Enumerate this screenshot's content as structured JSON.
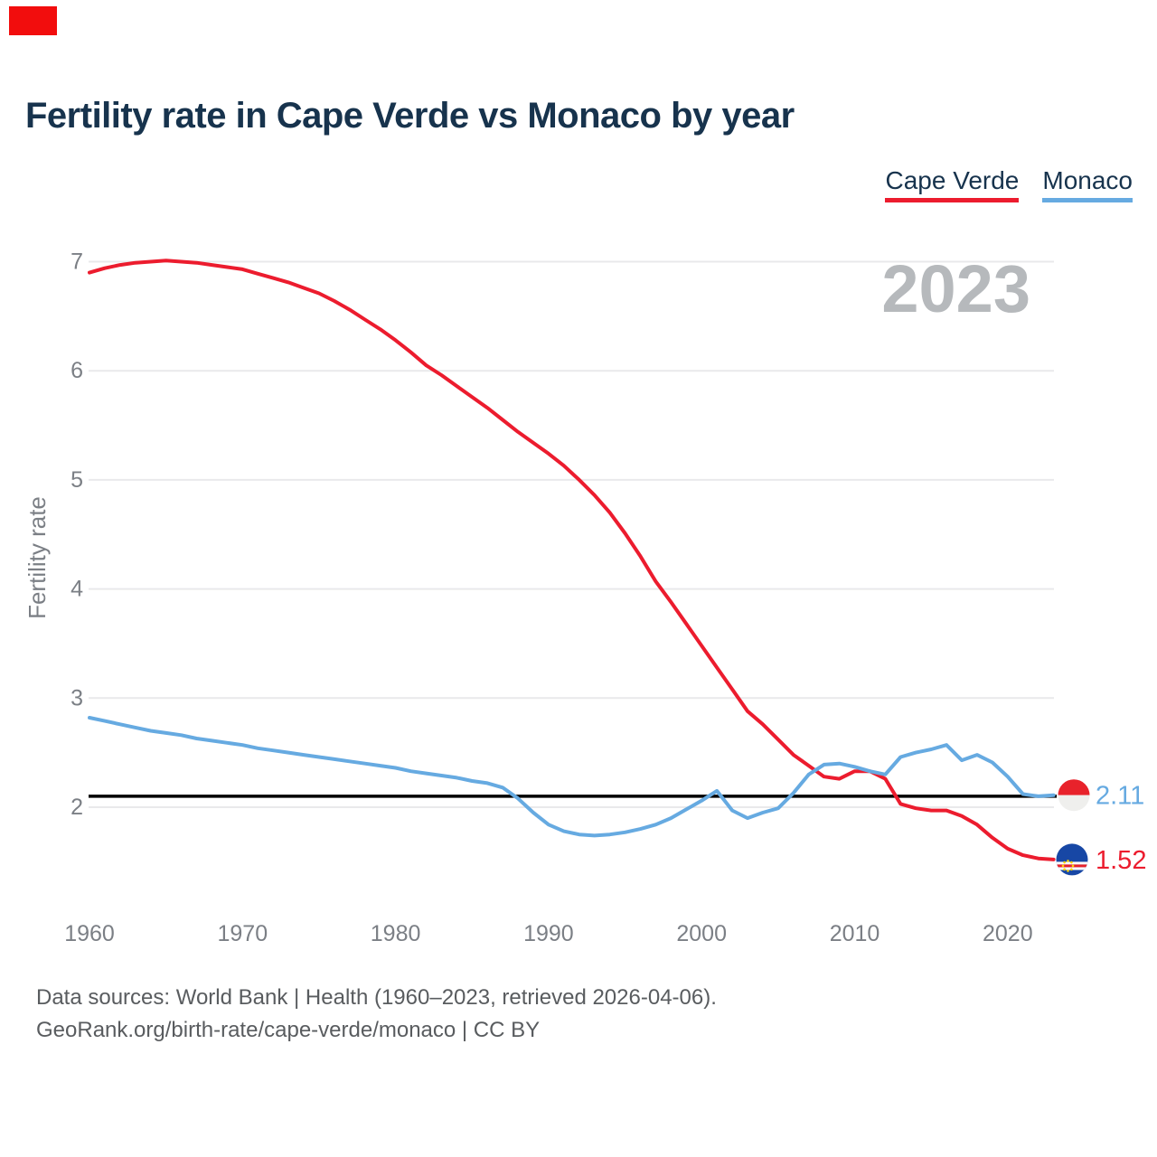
{
  "page": {
    "background": "#ffffff",
    "marker_color": "#f20d0d"
  },
  "header": {
    "title": "Fertility rate in Cape Verde vs Monaco by year"
  },
  "legend": [
    {
      "label": "Cape Verde",
      "color": "#ec1c2e"
    },
    {
      "label": "Monaco",
      "color": "#66aae1"
    }
  ],
  "watermark": "2023",
  "footer": {
    "line1": "Data sources: World Bank | Health (1960–2023, retrieved 2026-04-06).",
    "line2": "GeoRank.org/birth-rate/cape-verde/monaco | CC BY"
  },
  "chart_data": {
    "type": "line",
    "title": "Fertility rate in Cape Verde vs Monaco by year",
    "xlabel": "",
    "ylabel": "Fertility rate",
    "x_range": [
      1960,
      2023
    ],
    "ylim": [
      1.4,
      7.15
    ],
    "grid": "horizontal",
    "legend_position": "top-right",
    "yticks": [
      2,
      3,
      4,
      5,
      6,
      7
    ],
    "xticks": [
      1960,
      1970,
      1980,
      1990,
      2000,
      2010,
      2020
    ],
    "reference_line": {
      "value": 2.1,
      "color": "#000000"
    },
    "x": [
      1960,
      1961,
      1962,
      1963,
      1964,
      1965,
      1966,
      1967,
      1968,
      1969,
      1970,
      1971,
      1972,
      1973,
      1974,
      1975,
      1976,
      1977,
      1978,
      1979,
      1980,
      1981,
      1982,
      1983,
      1984,
      1985,
      1986,
      1987,
      1988,
      1989,
      1990,
      1991,
      1992,
      1993,
      1994,
      1995,
      1996,
      1997,
      1998,
      1999,
      2000,
      2001,
      2002,
      2003,
      2004,
      2005,
      2006,
      2007,
      2008,
      2009,
      2010,
      2011,
      2012,
      2013,
      2014,
      2015,
      2016,
      2017,
      2018,
      2019,
      2020,
      2021,
      2022,
      2023
    ],
    "series": [
      {
        "name": "Cape Verde",
        "color": "#ec1c2e",
        "end_label": "1.52",
        "flag": "cape-verde-flag",
        "values": [
          6.9,
          6.94,
          6.97,
          6.99,
          7.0,
          7.01,
          7.0,
          6.99,
          6.97,
          6.95,
          6.93,
          6.89,
          6.85,
          6.81,
          6.76,
          6.71,
          6.64,
          6.56,
          6.47,
          6.38,
          6.28,
          6.17,
          6.05,
          5.96,
          5.86,
          5.76,
          5.66,
          5.55,
          5.44,
          5.34,
          5.24,
          5.13,
          5.0,
          4.86,
          4.7,
          4.51,
          4.3,
          4.07,
          3.88,
          3.68,
          3.48,
          3.28,
          3.08,
          2.88,
          2.76,
          2.62,
          2.48,
          2.38,
          2.28,
          2.26,
          2.33,
          2.33,
          2.26,
          2.03,
          1.99,
          1.97,
          1.97,
          1.92,
          1.84,
          1.72,
          1.62,
          1.56,
          1.53,
          1.52
        ]
      },
      {
        "name": "Monaco",
        "color": "#66aae1",
        "end_label": "2.11",
        "flag": "monaco-flag",
        "values": [
          2.82,
          2.79,
          2.76,
          2.73,
          2.7,
          2.68,
          2.66,
          2.63,
          2.61,
          2.59,
          2.57,
          2.54,
          2.52,
          2.5,
          2.48,
          2.46,
          2.44,
          2.42,
          2.4,
          2.38,
          2.36,
          2.33,
          2.31,
          2.29,
          2.27,
          2.24,
          2.22,
          2.18,
          2.08,
          1.95,
          1.84,
          1.78,
          1.75,
          1.74,
          1.75,
          1.77,
          1.8,
          1.84,
          1.9,
          1.98,
          2.06,
          2.15,
          1.97,
          1.9,
          1.95,
          1.99,
          2.13,
          2.3,
          2.39,
          2.4,
          2.37,
          2.33,
          2.3,
          2.46,
          2.5,
          2.53,
          2.57,
          2.43,
          2.48,
          2.41,
          2.28,
          2.12,
          2.1,
          2.11
        ]
      }
    ]
  }
}
